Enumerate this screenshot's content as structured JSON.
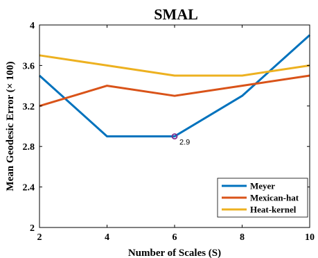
{
  "chart_data": {
    "type": "line",
    "title": "SMAL",
    "xlabel": "Number of Scales (S)",
    "ylabel": "Mean Geodesic Error (× 100)",
    "x": [
      2,
      4,
      6,
      8,
      10
    ],
    "xlim": [
      2,
      10
    ],
    "ylim": [
      2,
      4
    ],
    "xticks": [
      2,
      4,
      6,
      8,
      10
    ],
    "yticks": [
      2,
      2.4,
      2.8,
      3.2,
      3.6,
      4
    ],
    "xtick_labels": [
      "2",
      "4",
      "6",
      "8",
      "10"
    ],
    "ytick_labels": [
      "2",
      "2.4",
      "2.8",
      "3.2",
      "3.6",
      "4"
    ],
    "grid": false,
    "legend_position": "bottom-right",
    "series": [
      {
        "name": "Meyer",
        "color": "#0072BD",
        "values": [
          3.5,
          2.9,
          2.9,
          3.3,
          3.9
        ]
      },
      {
        "name": "Mexican-hat",
        "color": "#D95319",
        "values": [
          3.2,
          3.4,
          3.3,
          3.4,
          3.5
        ]
      },
      {
        "name": "Heat-kernel",
        "color": "#EDB120",
        "values": [
          3.7,
          3.6,
          3.5,
          3.5,
          3.6
        ]
      }
    ],
    "annotations": [
      {
        "series": "Meyer",
        "x": 6,
        "y": 2.9,
        "text": "2.9",
        "marker_color": "#7E2F8E"
      }
    ]
  }
}
